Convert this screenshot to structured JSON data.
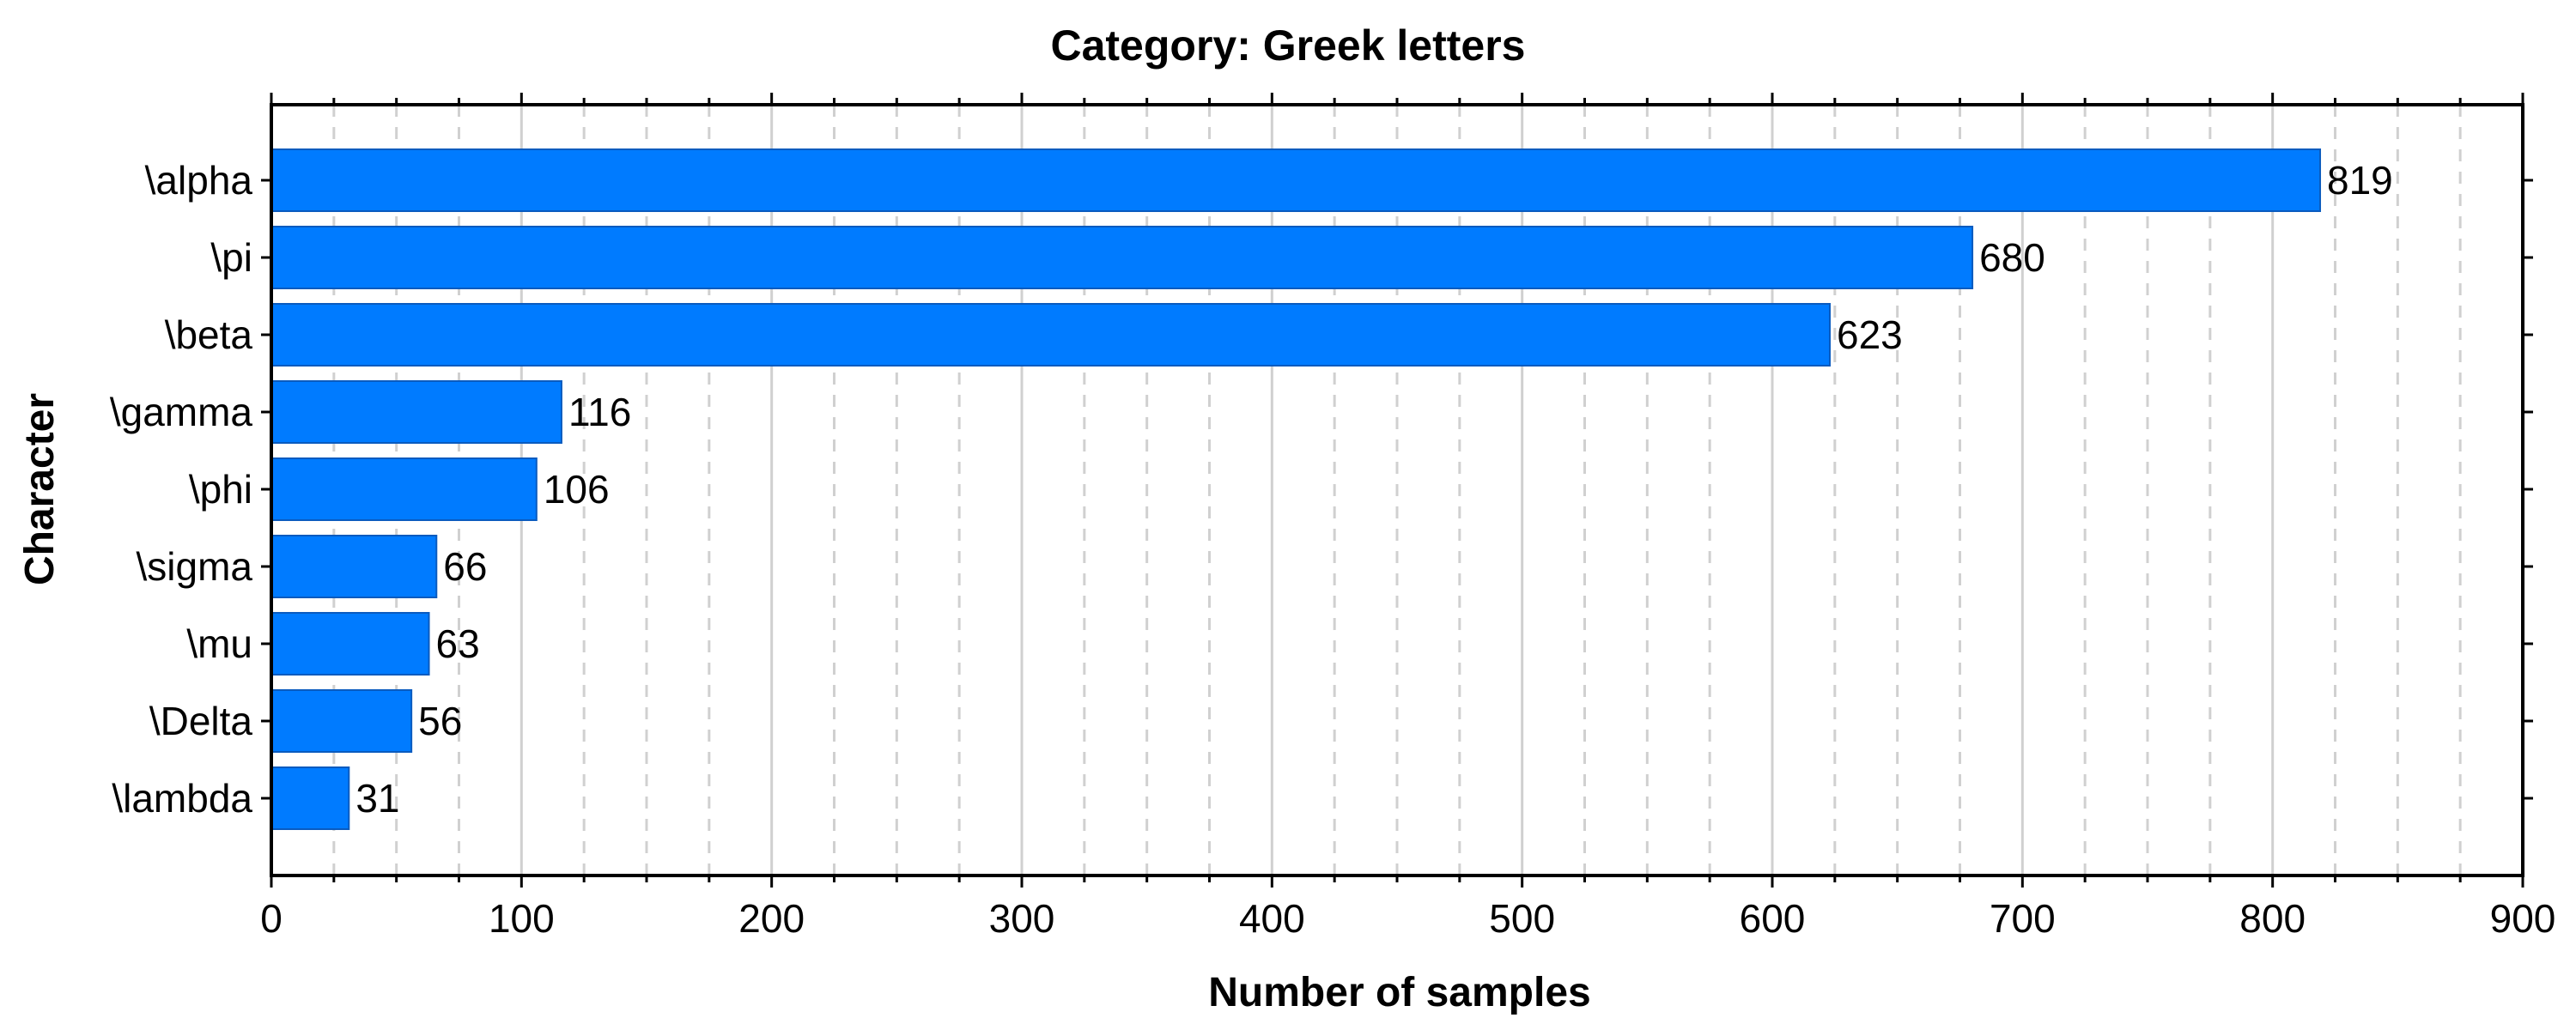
{
  "chart_data": {
    "type": "bar",
    "orientation": "horizontal",
    "title": "Category: Greek letters",
    "xlabel": "Number of samples",
    "ylabel": "Character",
    "categories": [
      "\\alpha",
      "\\pi",
      "\\beta",
      "\\gamma",
      "\\phi",
      "\\sigma",
      "\\mu",
      "\\Delta",
      "\\lambda"
    ],
    "values": [
      819,
      680,
      623,
      116,
      106,
      66,
      63,
      56,
      31
    ],
    "xlim": [
      0,
      900
    ],
    "x_ticks": [
      0,
      100,
      200,
      300,
      400,
      500,
      600,
      700,
      800,
      900
    ],
    "x_tick_labels": [
      "0",
      "100",
      "200",
      "300",
      "400",
      "500",
      "600",
      "700",
      "800",
      "900"
    ],
    "minor_tick_step": 25,
    "grid": true,
    "show_data_labels": true,
    "colors": {
      "bar": "#007bff",
      "bar_edge": "#0a5bbf"
    }
  }
}
